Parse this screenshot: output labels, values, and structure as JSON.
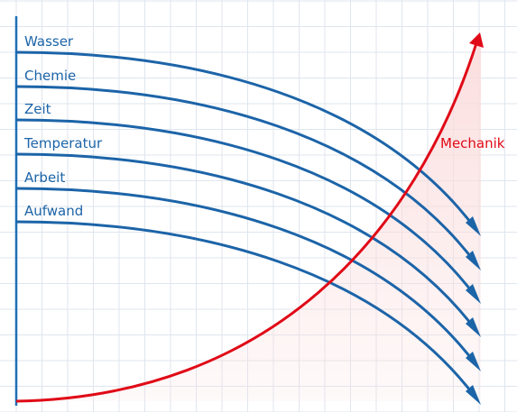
{
  "diagram": {
    "colors": {
      "grid": "#dfe6ee",
      "axis": "#1f6fb5",
      "blue_curves": "#1c64a8",
      "label_text": "#1c64a8",
      "red_curve": "#e00a17",
      "red_fill": "#fbdcdc"
    },
    "curves": [
      {
        "label": "Wasser"
      },
      {
        "label": "Chemie"
      },
      {
        "label": "Zeit"
      },
      {
        "label": "Temperatur"
      },
      {
        "label": "Arbeit"
      },
      {
        "label": "Aufwand"
      }
    ],
    "rising_curve": {
      "label": "Mechanik"
    }
  }
}
